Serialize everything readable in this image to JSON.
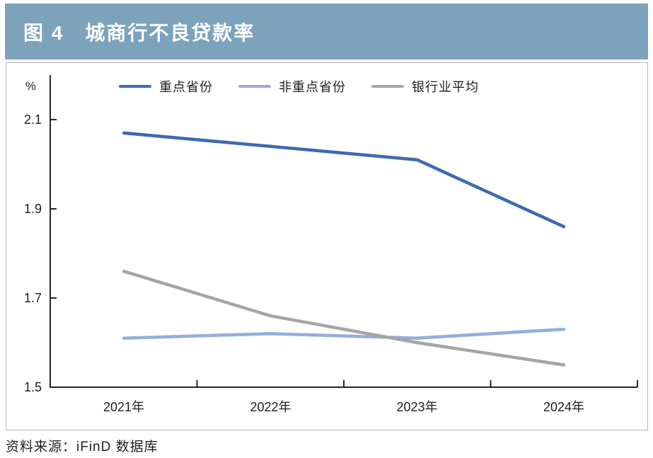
{
  "header": {
    "title": "图 4　城商行不良贷款率"
  },
  "colors": {
    "header_bg": "#7CA2BC",
    "axis": "#262626",
    "panel_border": "#B9B9B9"
  },
  "chart_data": {
    "type": "line",
    "title": "城商行不良贷款率",
    "unit_label": "%",
    "categories": [
      "2021年",
      "2022年",
      "2023年",
      "2024年"
    ],
    "series": [
      {
        "name": "重点省份",
        "color": "#3B6AB4",
        "values": [
          2.07,
          2.04,
          2.01,
          1.86
        ]
      },
      {
        "name": "非重点省份",
        "color": "#92AFDD",
        "values": [
          1.61,
          1.62,
          1.61,
          1.63
        ]
      },
      {
        "name": "银行业平均",
        "color": "#A5A5A5",
        "values": [
          1.76,
          1.66,
          1.6,
          1.55
        ]
      }
    ],
    "y_ticks": [
      2.1,
      1.9,
      1.7,
      1.5
    ],
    "ylim": [
      1.5,
      2.2
    ],
    "xlabel": "",
    "ylabel": "%",
    "grid": false,
    "legend_position": "top"
  },
  "source": {
    "text": "资料来源：iFinD 数据库"
  }
}
